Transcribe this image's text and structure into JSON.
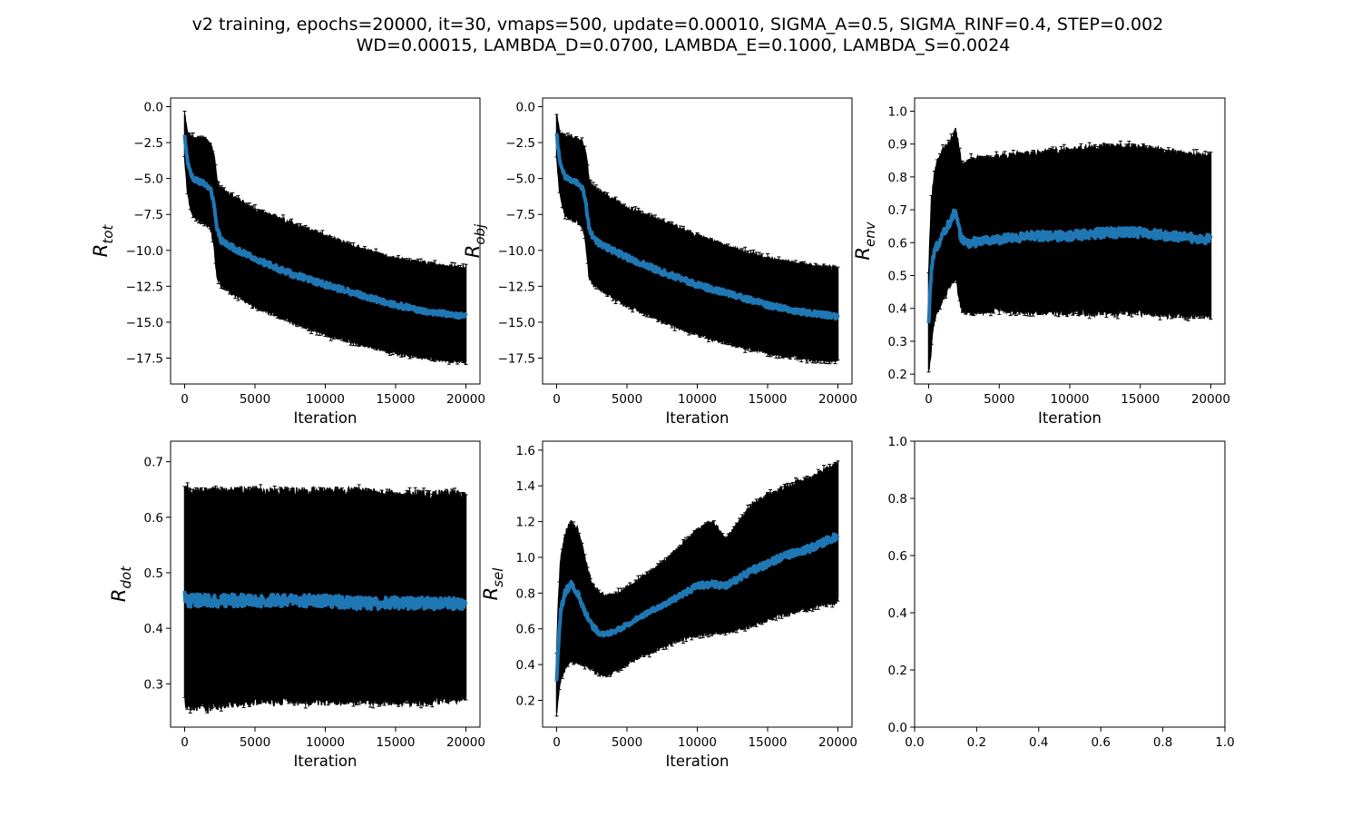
{
  "figure": {
    "title_line1": "v2 training, epochs=20000, it=30, vmaps=500, update=0.00010, SIGMA_A=0.5, SIGMA_RINF=0.4, STEP=0.002",
    "title_line2": "WD=0.00015, LAMBDA_D=0.0700, LAMBDA_E=0.1000, LAMBDA_S=0.0024"
  },
  "colors": {
    "mean_line": "#1f77b4",
    "error_bars": "#000000",
    "axes": "#000000",
    "background": "#ffffff"
  },
  "chart_data": [
    {
      "type": "line",
      "panel": "top-left",
      "ylabel_main": "R",
      "ylabel_sub": "tot",
      "xlabel": "Iteration",
      "xlim": [
        -1000,
        21000
      ],
      "ylim": [
        -19.3,
        0.6
      ],
      "xticks": [
        0,
        5000,
        10000,
        15000,
        20000
      ],
      "xtick_labels": [
        "0",
        "5000",
        "10000",
        "15000",
        "20000"
      ],
      "yticks": [
        0.0,
        -2.5,
        -5.0,
        -7.5,
        -10.0,
        -12.5,
        -15.0,
        -17.5
      ],
      "ytick_labels": [
        "0.0",
        "−2.5",
        "−5.0",
        "−7.5",
        "−10.0",
        "−12.5",
        "−15.0",
        "−17.5"
      ],
      "grid": false,
      "series": [
        {
          "x": [
            0,
            200,
            400,
            600,
            1000,
            1500,
            1900,
            2100,
            2300,
            2600,
            3000,
            4000,
            5000,
            7500,
            10000,
            12500,
            15000,
            17500,
            20000
          ],
          "mean": [
            -2.0,
            -3.8,
            -4.5,
            -5.0,
            -5.2,
            -5.4,
            -5.9,
            -7.0,
            -8.5,
            -9.3,
            -9.6,
            -10.1,
            -10.6,
            -11.6,
            -12.4,
            -13.1,
            -13.8,
            -14.3,
            -14.6
          ],
          "upper": [
            -0.5,
            -1.9,
            -2.1,
            -2.2,
            -2.2,
            -2.3,
            -2.7,
            -3.5,
            -5.2,
            -5.7,
            -6.0,
            -6.6,
            -7.2,
            -8.1,
            -9.0,
            -9.9,
            -10.6,
            -11.0,
            -11.3
          ],
          "lower": [
            -3.5,
            -5.9,
            -7.0,
            -7.6,
            -7.9,
            -8.1,
            -8.6,
            -9.8,
            -11.8,
            -12.4,
            -12.7,
            -13.3,
            -13.9,
            -14.9,
            -15.8,
            -16.5,
            -17.1,
            -17.5,
            -17.7
          ]
        }
      ]
    },
    {
      "type": "line",
      "panel": "top-middle",
      "ylabel_main": "R",
      "ylabel_sub": "obj",
      "xlabel": "Iteration",
      "xlim": [
        -1000,
        21000
      ],
      "ylim": [
        -19.3,
        0.6
      ],
      "xticks": [
        0,
        5000,
        10000,
        15000,
        20000
      ],
      "xtick_labels": [
        "0",
        "5000",
        "10000",
        "15000",
        "20000"
      ],
      "yticks": [
        0.0,
        -2.5,
        -5.0,
        -7.5,
        -10.0,
        -12.5,
        -15.0,
        -17.5
      ],
      "ytick_labels": [
        "0.0",
        "−2.5",
        "−5.0",
        "−7.5",
        "−10.0",
        "−12.5",
        "−15.0",
        "−17.5"
      ],
      "grid": false,
      "series": [
        {
          "x": [
            0,
            200,
            400,
            600,
            1000,
            1500,
            1900,
            2100,
            2300,
            2600,
            3000,
            4000,
            5000,
            7500,
            10000,
            12500,
            15000,
            17500,
            20000
          ],
          "mean": [
            -1.9,
            -3.7,
            -4.4,
            -4.9,
            -5.1,
            -5.3,
            -5.8,
            -6.9,
            -8.4,
            -9.2,
            -9.5,
            -10.0,
            -10.5,
            -11.5,
            -12.4,
            -13.1,
            -13.8,
            -14.3,
            -14.6
          ],
          "upper": [
            -0.5,
            -1.8,
            -2.0,
            -2.1,
            -2.2,
            -2.3,
            -2.6,
            -3.4,
            -5.1,
            -5.6,
            -5.9,
            -6.5,
            -7.1,
            -8.0,
            -9.0,
            -9.9,
            -10.6,
            -11.0,
            -11.3
          ],
          "lower": [
            -3.4,
            -5.8,
            -6.9,
            -7.5,
            -7.8,
            -8.0,
            -8.5,
            -9.7,
            -11.7,
            -12.3,
            -12.6,
            -13.2,
            -13.8,
            -14.9,
            -15.8,
            -16.5,
            -17.1,
            -17.5,
            -17.7
          ]
        }
      ]
    },
    {
      "type": "line",
      "panel": "top-right",
      "ylabel_main": "R",
      "ylabel_sub": "env",
      "xlabel": "Iteration",
      "xlim": [
        -1000,
        21000
      ],
      "ylim": [
        0.17,
        1.04
      ],
      "xticks": [
        0,
        5000,
        10000,
        15000,
        20000
      ],
      "xtick_labels": [
        "0",
        "5000",
        "10000",
        "15000",
        "20000"
      ],
      "yticks": [
        0.2,
        0.3,
        0.4,
        0.5,
        0.6,
        0.7,
        0.8,
        0.9,
        1.0
      ],
      "ytick_labels": [
        "0.2",
        "0.3",
        "0.4",
        "0.5",
        "0.6",
        "0.7",
        "0.8",
        "0.9",
        "1.0"
      ],
      "grid": false,
      "series": [
        {
          "x": [
            0,
            100,
            200,
            400,
            700,
            1000,
            1500,
            1900,
            2100,
            2300,
            2600,
            3000,
            5000,
            7500,
            10000,
            12500,
            15000,
            17500,
            20000
          ],
          "mean": [
            0.35,
            0.45,
            0.52,
            0.57,
            0.6,
            0.63,
            0.66,
            0.7,
            0.66,
            0.61,
            0.6,
            0.6,
            0.61,
            0.62,
            0.62,
            0.63,
            0.63,
            0.62,
            0.61
          ],
          "upper": [
            0.5,
            0.62,
            0.73,
            0.8,
            0.86,
            0.88,
            0.9,
            0.94,
            0.9,
            0.84,
            0.84,
            0.85,
            0.86,
            0.87,
            0.88,
            0.89,
            0.89,
            0.87,
            0.86
          ],
          "lower": [
            0.21,
            0.24,
            0.3,
            0.36,
            0.4,
            0.43,
            0.47,
            0.5,
            0.45,
            0.4,
            0.39,
            0.39,
            0.4,
            0.39,
            0.39,
            0.39,
            0.39,
            0.38,
            0.38
          ]
        }
      ]
    },
    {
      "type": "line",
      "panel": "bottom-left",
      "ylabel_main": "R",
      "ylabel_sub": "dot",
      "xlabel": "Iteration",
      "xlim": [
        -1000,
        21000
      ],
      "ylim": [
        0.222,
        0.737
      ],
      "xticks": [
        0,
        5000,
        10000,
        15000,
        20000
      ],
      "xtick_labels": [
        "0",
        "5000",
        "10000",
        "15000",
        "20000"
      ],
      "yticks": [
        0.3,
        0.4,
        0.5,
        0.6,
        0.7
      ],
      "ytick_labels": [
        "0.3",
        "0.4",
        "0.5",
        "0.6",
        "0.7"
      ],
      "grid": false,
      "series": [
        {
          "x": [
            0,
            200,
            500,
            1000,
            2000,
            3000,
            5000,
            7500,
            10000,
            12500,
            15000,
            17500,
            20000
          ],
          "mean": [
            0.46,
            0.45,
            0.45,
            0.45,
            0.45,
            0.45,
            0.45,
            0.45,
            0.45,
            0.445,
            0.445,
            0.445,
            0.445
          ],
          "upper": [
            0.65,
            0.65,
            0.64,
            0.645,
            0.645,
            0.645,
            0.645,
            0.645,
            0.645,
            0.645,
            0.64,
            0.64,
            0.64
          ],
          "lower": [
            0.27,
            0.26,
            0.26,
            0.26,
            0.26,
            0.265,
            0.27,
            0.27,
            0.27,
            0.27,
            0.27,
            0.27,
            0.275
          ]
        }
      ]
    },
    {
      "type": "line",
      "panel": "bottom-middle",
      "ylabel_main": "R",
      "ylabel_sub": "sel",
      "xlabel": "Iteration",
      "xlim": [
        -1000,
        21000
      ],
      "ylim": [
        0.05,
        1.65
      ],
      "xticks": [
        0,
        5000,
        10000,
        15000,
        20000
      ],
      "xtick_labels": [
        "0",
        "5000",
        "10000",
        "15000",
        "20000"
      ],
      "yticks": [
        0.2,
        0.4,
        0.6,
        0.8,
        1.0,
        1.2,
        1.4,
        1.6
      ],
      "ytick_labels": [
        "0.2",
        "0.4",
        "0.6",
        "0.8",
        "1.0",
        "1.2",
        "1.4",
        "1.6"
      ],
      "grid": false,
      "series": [
        {
          "x": [
            0,
            150,
            300,
            600,
            1000,
            1500,
            2000,
            2500,
            3000,
            3500,
            4500,
            6000,
            8000,
            10000,
            11000,
            12000,
            14000,
            16000,
            18000,
            20000
          ],
          "mean": [
            0.3,
            0.55,
            0.7,
            0.8,
            0.85,
            0.8,
            0.7,
            0.62,
            0.58,
            0.57,
            0.6,
            0.67,
            0.75,
            0.84,
            0.85,
            0.84,
            0.93,
            1.0,
            1.05,
            1.12
          ],
          "upper": [
            0.45,
            0.8,
            1.0,
            1.12,
            1.2,
            1.15,
            1.0,
            0.85,
            0.8,
            0.78,
            0.8,
            0.88,
            1.0,
            1.15,
            1.2,
            1.1,
            1.3,
            1.38,
            1.44,
            1.52
          ],
          "lower": [
            0.13,
            0.25,
            0.33,
            0.38,
            0.42,
            0.42,
            0.4,
            0.38,
            0.35,
            0.34,
            0.38,
            0.45,
            0.52,
            0.57,
            0.58,
            0.58,
            0.63,
            0.68,
            0.72,
            0.76
          ]
        }
      ]
    },
    {
      "type": "line",
      "panel": "bottom-right",
      "xlim": [
        0.0,
        1.0
      ],
      "ylim": [
        0.0,
        1.0
      ],
      "xticks": [
        0.0,
        0.2,
        0.4,
        0.6,
        0.8,
        1.0
      ],
      "xtick_labels": [
        "0.0",
        "0.2",
        "0.4",
        "0.6",
        "0.8",
        "1.0"
      ],
      "yticks": [
        0.0,
        0.2,
        0.4,
        0.6,
        0.8,
        1.0
      ],
      "ytick_labels": [
        "0.0",
        "0.2",
        "0.4",
        "0.6",
        "0.8",
        "1.0"
      ],
      "grid": false,
      "series": []
    }
  ]
}
